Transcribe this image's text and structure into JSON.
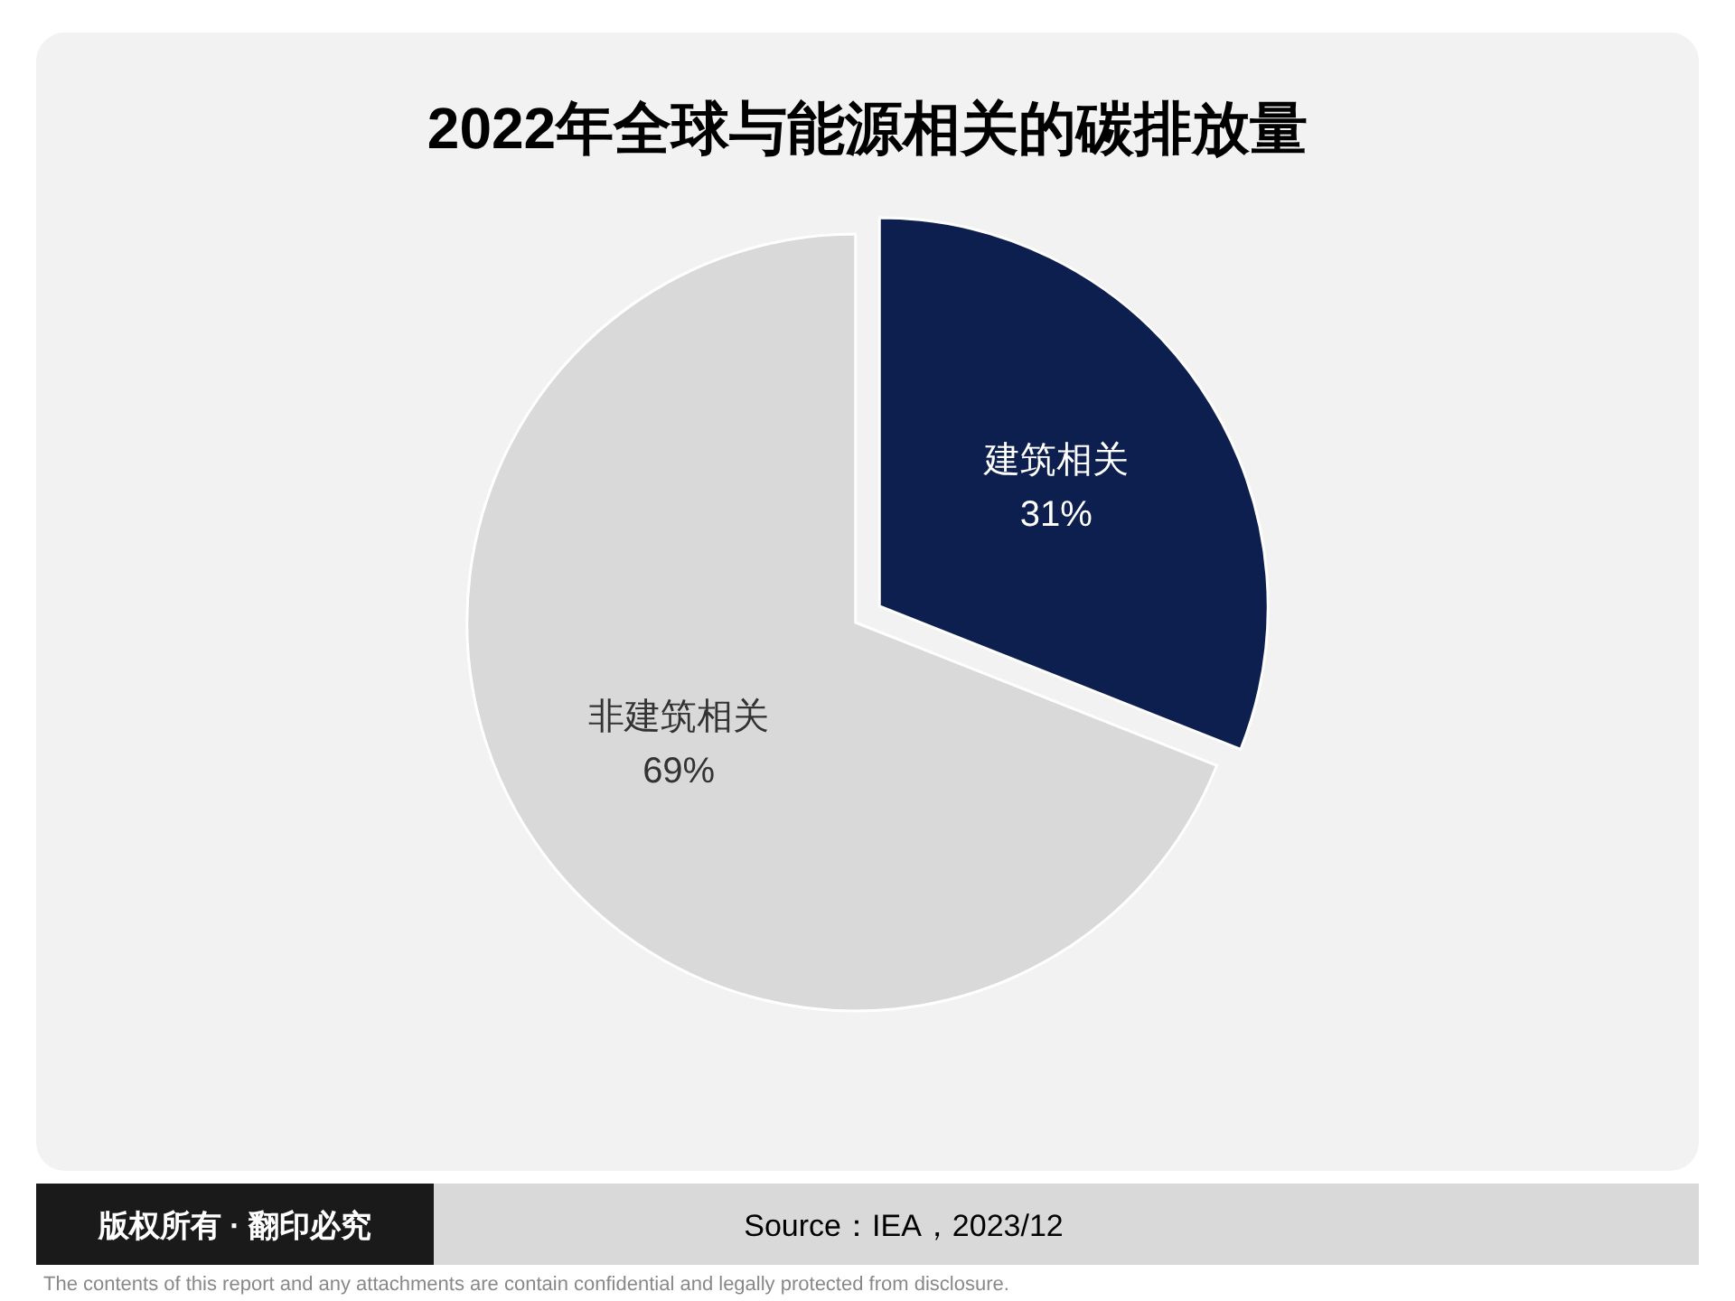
{
  "chart_data": {
    "type": "pie",
    "title": "2022年全球与能源相关的碳排放量",
    "categories": [
      "建筑相关",
      "非建筑相关"
    ],
    "values": [
      31,
      69
    ],
    "colors": [
      "#0d1f4f",
      "#d9d9d9"
    ],
    "value_labels": [
      "31%",
      "69%"
    ],
    "annotations": [
      "版权所有 · 翻印必究",
      "Source：IEA，2023/12",
      "The contents of this report and any attachments are contain confidential and legally protected from disclosure."
    ]
  }
}
